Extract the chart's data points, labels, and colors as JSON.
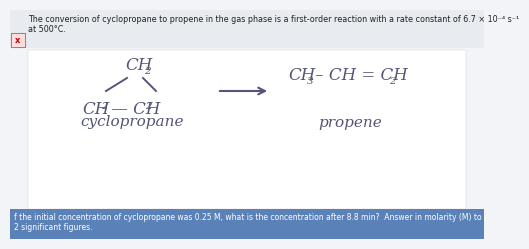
{
  "bg_color": "#f2f4f7",
  "panel_color": "#f8f9fb",
  "header_bg": "#e8ecf0",
  "header_text1": "The conversion of cyclopropane to propene in the gas phase is a first-order reaction with a rate constant of 6.7 × 10⁻⁴ s⁻¹",
  "header_text2": "at 500°C.",
  "footer_text1": "f the initial concentration of cyclopropane was 0.25 M, what is the concentration after 8.8 min?  Answer in molarity (M) to",
  "footer_text2": "2 significant figures.",
  "footer_bg": "#5b82b8",
  "footer_color": "#ffffff",
  "text_color": "#3a3a5c",
  "ink_color": "#555577",
  "header_fontsize": 5.8,
  "formula_fontsize": 12,
  "sub_fontsize": 7.5,
  "label_fontsize": 11,
  "footer_fontsize": 5.5,
  "cyclopropane_label": "cyclopropane",
  "propene_label": "propene"
}
